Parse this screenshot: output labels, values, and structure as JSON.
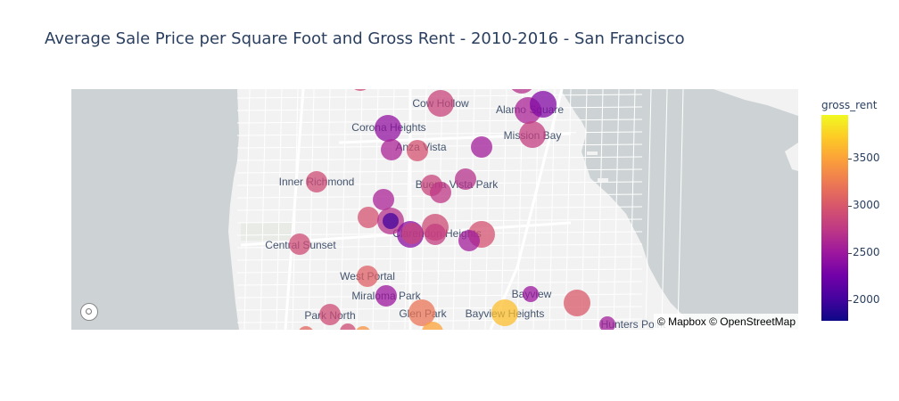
{
  "title": "Average Sale Price per Square Foot and Gross Rent - 2010-2016 - San Francisco",
  "colorbar": {
    "title": "gross_rent",
    "ticks": [
      "3500",
      "3000",
      "2500",
      "2000"
    ],
    "tick_values": [
      3500,
      3000,
      2500,
      2000
    ],
    "range": [
      1780,
      3960
    ]
  },
  "attribution": "© Mapbox © OpenStreetMap",
  "colors": {
    "water": "#cdd3d4",
    "land": "#f2f2f2",
    "label": "#44546e"
  },
  "chart_data": {
    "type": "scatter_mapbox",
    "color_variable": "gross_rent",
    "labels": [
      "Cow Hollow",
      "Alamo Square",
      "Corona Heights",
      "Mission Bay",
      "Anza Vista",
      "Inner Richmond",
      "Buena Vista Park",
      "Clarendon Heights",
      "Central Sunset",
      "West Portal",
      "Miraloma Park",
      "Bayview",
      "Park North",
      "Glen Park",
      "Bayview Heights",
      "Hunters Point"
    ],
    "points": [
      {
        "id": "p1",
        "value": 2900,
        "size": "medium"
      },
      {
        "id": "p2",
        "value": 2700,
        "size": "large"
      },
      {
        "id": "p3",
        "value": 2850,
        "size": "large"
      },
      {
        "id": "p4",
        "value": 2600,
        "size": "large"
      },
      {
        "id": "p5",
        "value": 2350,
        "size": "large"
      },
      {
        "id": "p6",
        "value": 2450,
        "size": "large"
      },
      {
        "id": "p7",
        "value": 2800,
        "size": "large"
      },
      {
        "id": "p8",
        "value": 2600,
        "size": "medium"
      },
      {
        "id": "p9",
        "value": 2950,
        "size": "medium"
      },
      {
        "id": "p10",
        "value": 2550,
        "size": "medium"
      },
      {
        "id": "p11",
        "value": 2900,
        "size": "medium"
      },
      {
        "id": "p12",
        "value": 2850,
        "size": "medium"
      },
      {
        "id": "p13",
        "value": 2750,
        "size": "medium"
      },
      {
        "id": "p14",
        "value": 2600,
        "size": "medium"
      },
      {
        "id": "p15",
        "value": 2700,
        "size": "medium"
      },
      {
        "id": "p16",
        "value": 2950,
        "size": "medium"
      },
      {
        "id": "p17",
        "value": 2700,
        "size": "large"
      },
      {
        "id": "p18",
        "value": 2900,
        "size": "large"
      },
      {
        "id": "p19",
        "value": 2400,
        "size": "large"
      },
      {
        "id": "p20",
        "value": 2000,
        "size": "small"
      },
      {
        "id": "p21",
        "value": 2850,
        "size": "medium"
      },
      {
        "id": "p22",
        "value": 2800,
        "size": "medium"
      },
      {
        "id": "p23",
        "value": 2950,
        "size": "large"
      },
      {
        "id": "p24",
        "value": 2550,
        "size": "medium"
      },
      {
        "id": "p25",
        "value": 2900,
        "size": "medium"
      },
      {
        "id": "p26",
        "value": 3050,
        "size": "medium"
      },
      {
        "id": "p27",
        "value": 2500,
        "size": "medium"
      },
      {
        "id": "p28",
        "value": 3650,
        "size": "large"
      },
      {
        "id": "p29",
        "value": 2500,
        "size": "small"
      },
      {
        "id": "p30",
        "value": 3000,
        "size": "large"
      },
      {
        "id": "p31",
        "value": 2900,
        "size": "medium"
      },
      {
        "id": "p32",
        "value": 3200,
        "size": "large"
      },
      {
        "id": "p33",
        "value": 3500,
        "size": "medium"
      },
      {
        "id": "p34",
        "value": 2550,
        "size": "small"
      },
      {
        "id": "p35",
        "value": 3100,
        "size": "small"
      },
      {
        "id": "p36",
        "value": 3400,
        "size": "small"
      },
      {
        "id": "p37",
        "value": 2900,
        "size": "small"
      }
    ]
  }
}
